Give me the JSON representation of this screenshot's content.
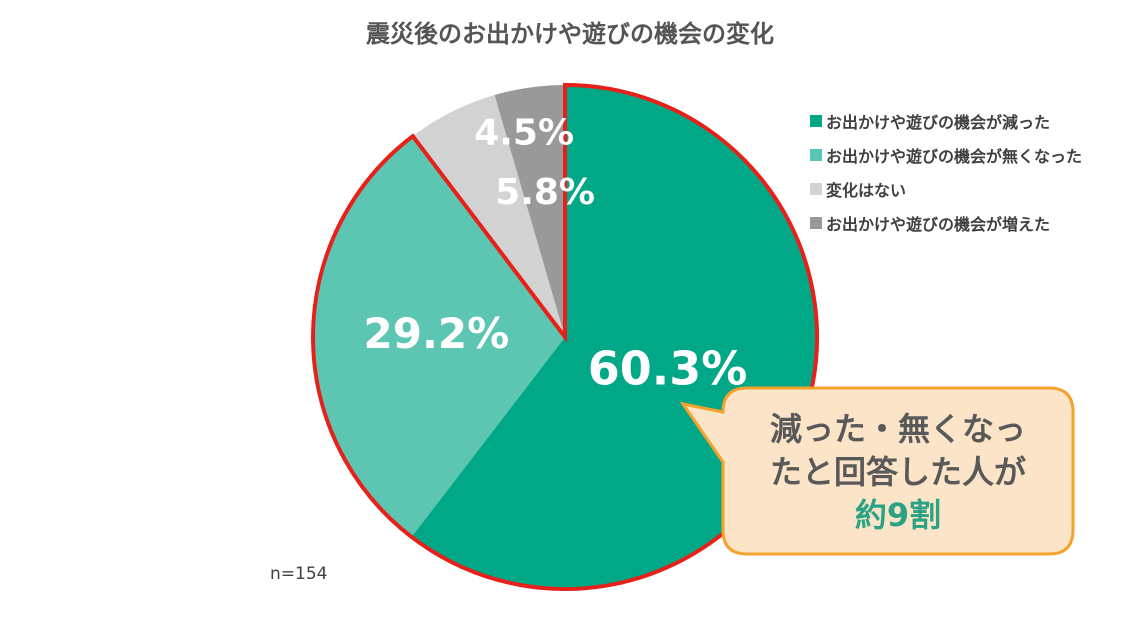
{
  "chart_data": {
    "type": "pie",
    "title": "震災後のお出かけや遊びの機会の変化",
    "slices": [
      {
        "label": "お出かけや遊びの機会が減った",
        "value": 60.3,
        "value_label": "60.3%",
        "color": "#00a887"
      },
      {
        "label": "お出かけや遊びの機会が無くなった",
        "value": 29.2,
        "value_label": "29.2%",
        "color": "#5cc6b3"
      },
      {
        "label": "変化はない",
        "value": 5.8,
        "value_label": "5.8%",
        "color": "#d2d2d2"
      },
      {
        "label": "お出かけや遊びの機会が増えた",
        "value": 4.5,
        "value_label": "4.5%",
        "color": "#999999"
      }
    ],
    "start_angle_deg": 0,
    "direction": "clockwise",
    "highlighted_slices": [
      0,
      1
    ],
    "highlight_color": "#e8201a",
    "legend_position": "right",
    "note": "n=154"
  },
  "callout": {
    "line1": "減った・無くなっ",
    "line2": "たと回答した人が",
    "line3": "約9割",
    "fill": "#fce4c9",
    "border": "#f5a22d",
    "emphasis_color": "#2aa385"
  }
}
